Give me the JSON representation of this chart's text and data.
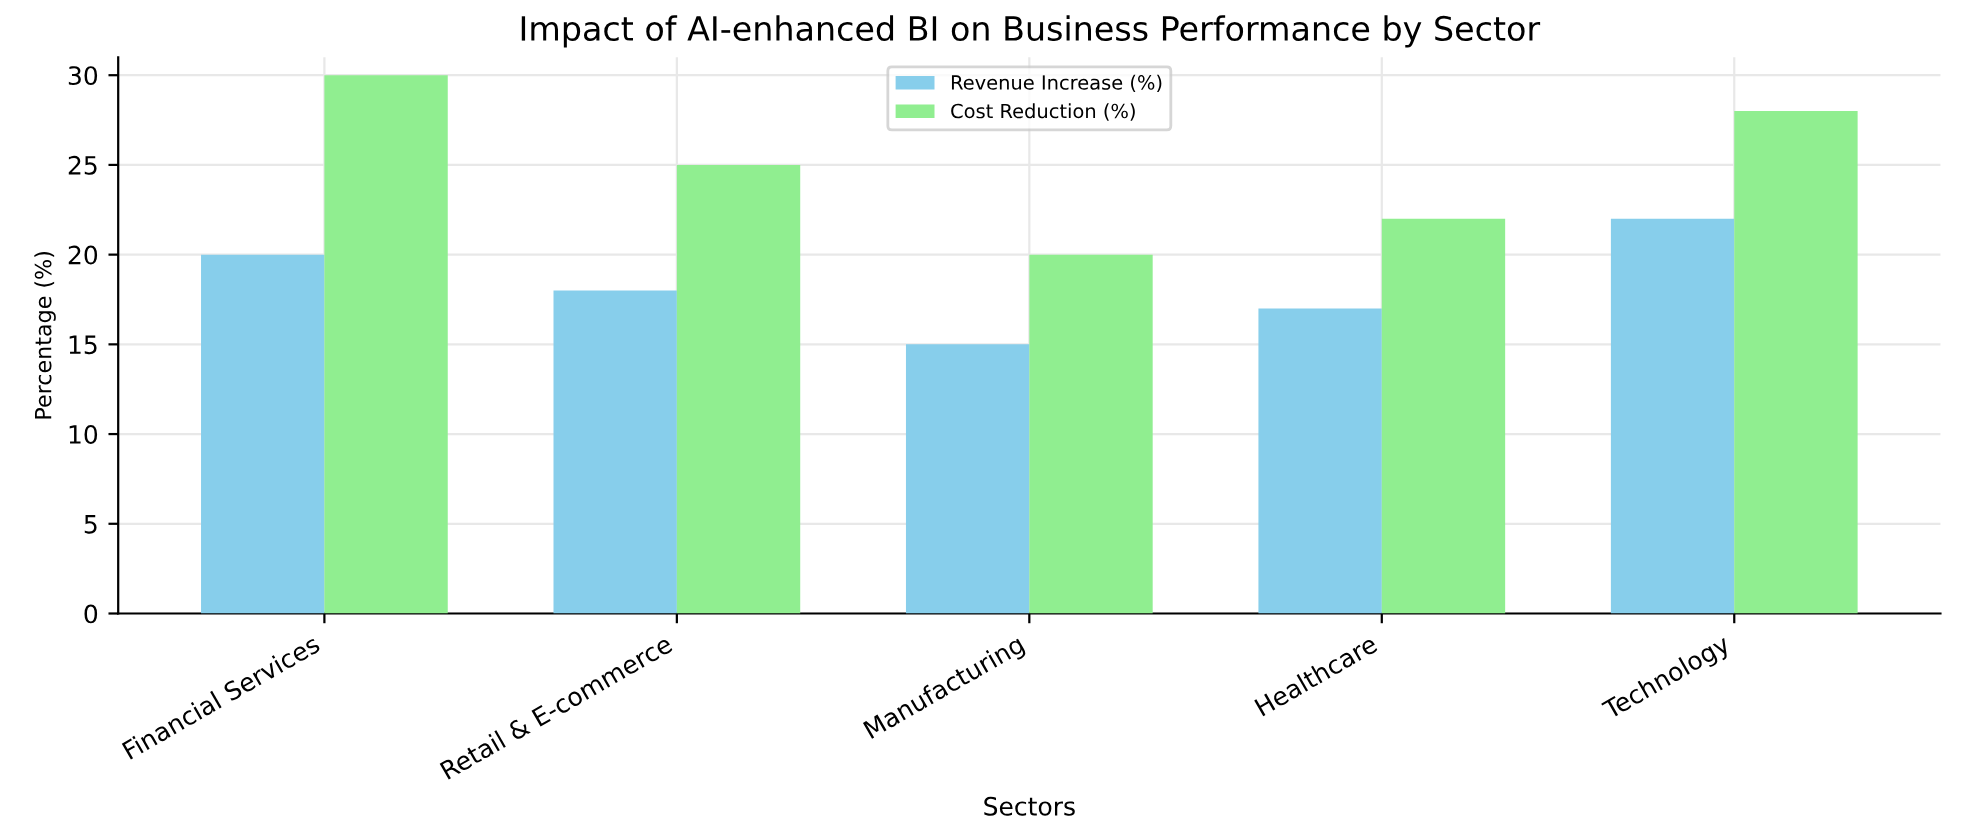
{
  "chart_data": {
    "type": "bar",
    "title": "Impact of AI-enhanced BI on Business Performance by Sector",
    "xlabel": "Sectors",
    "ylabel": "Percentage (%)",
    "categories": [
      "Financial Services",
      "Retail & E-commerce",
      "Manufacturing",
      "Healthcare",
      "Technology"
    ],
    "series": [
      {
        "name": "Revenue Increase (%)",
        "color": "#87ceeb",
        "values": [
          20,
          18,
          15,
          17,
          22
        ]
      },
      {
        "name": "Cost Reduction (%)",
        "color": "#90ee90",
        "values": [
          30,
          25,
          20,
          22,
          28
        ]
      }
    ],
    "ylim": [
      0,
      31
    ],
    "yticks": [
      0,
      5,
      10,
      15,
      20,
      25,
      30
    ],
    "grid": true,
    "legend": "top"
  }
}
